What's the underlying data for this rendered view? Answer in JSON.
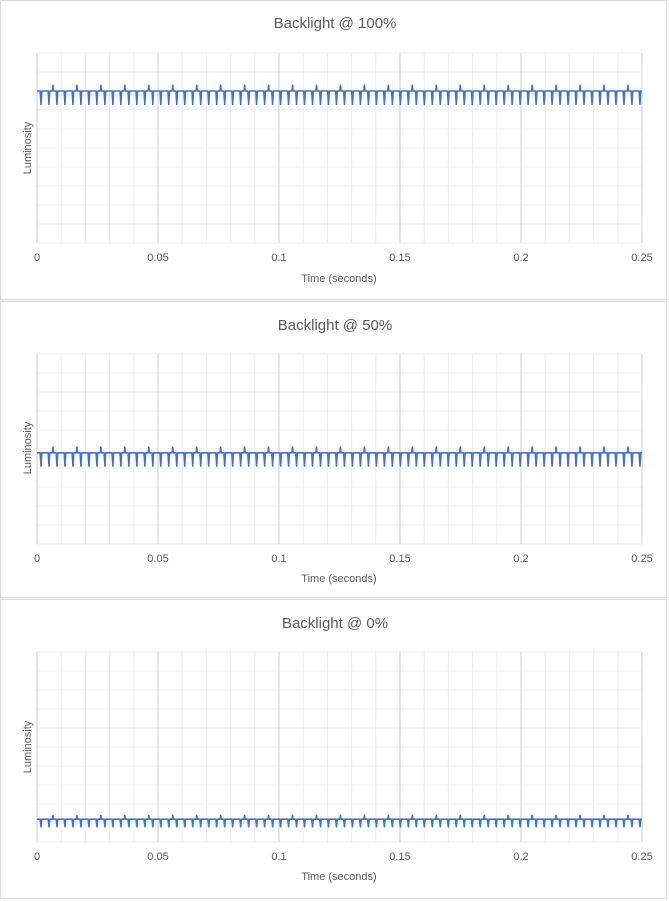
{
  "chart_data": [
    {
      "type": "line",
      "title": "Backlight @ 100%",
      "xlabel": "Time (seconds)",
      "ylabel": "Luminosity",
      "xlim": [
        0,
        0.25
      ],
      "x_ticks": [
        "0",
        "0.05",
        "0.1",
        "0.15",
        "0.2",
        "0.25"
      ],
      "y_ticks": [],
      "grid": true,
      "series": [
        {
          "color": "#4472c4",
          "baseline": 0.8,
          "dip": 0.73,
          "spike": 0.83,
          "period": 0.0033,
          "spike_every": 3
        }
      ]
    },
    {
      "type": "line",
      "title": "Backlight @ 50%",
      "xlabel": "Time (seconds)",
      "ylabel": "Luminosity",
      "xlim": [
        0,
        0.25
      ],
      "x_ticks": [
        "0",
        "0.05",
        "0.1",
        "0.15",
        "0.2",
        "0.25"
      ],
      "y_ticks": [],
      "grid": true,
      "series": [
        {
          "color": "#4472c4",
          "baseline": 0.48,
          "dip": 0.41,
          "spike": 0.51,
          "period": 0.0033,
          "spike_every": 3
        }
      ]
    },
    {
      "type": "line",
      "title": "Backlight @ 0%",
      "xlabel": "Time (seconds)",
      "ylabel": "Luminosity",
      "xlim": [
        0,
        0.25
      ],
      "x_ticks": [
        "0",
        "0.05",
        "0.1",
        "0.15",
        "0.2",
        "0.25"
      ],
      "y_ticks": [],
      "grid": true,
      "series": [
        {
          "color": "#4472c4",
          "baseline": 0.12,
          "dip": 0.08,
          "spike": 0.14,
          "period": 0.0033,
          "spike_every": 3
        }
      ]
    }
  ]
}
